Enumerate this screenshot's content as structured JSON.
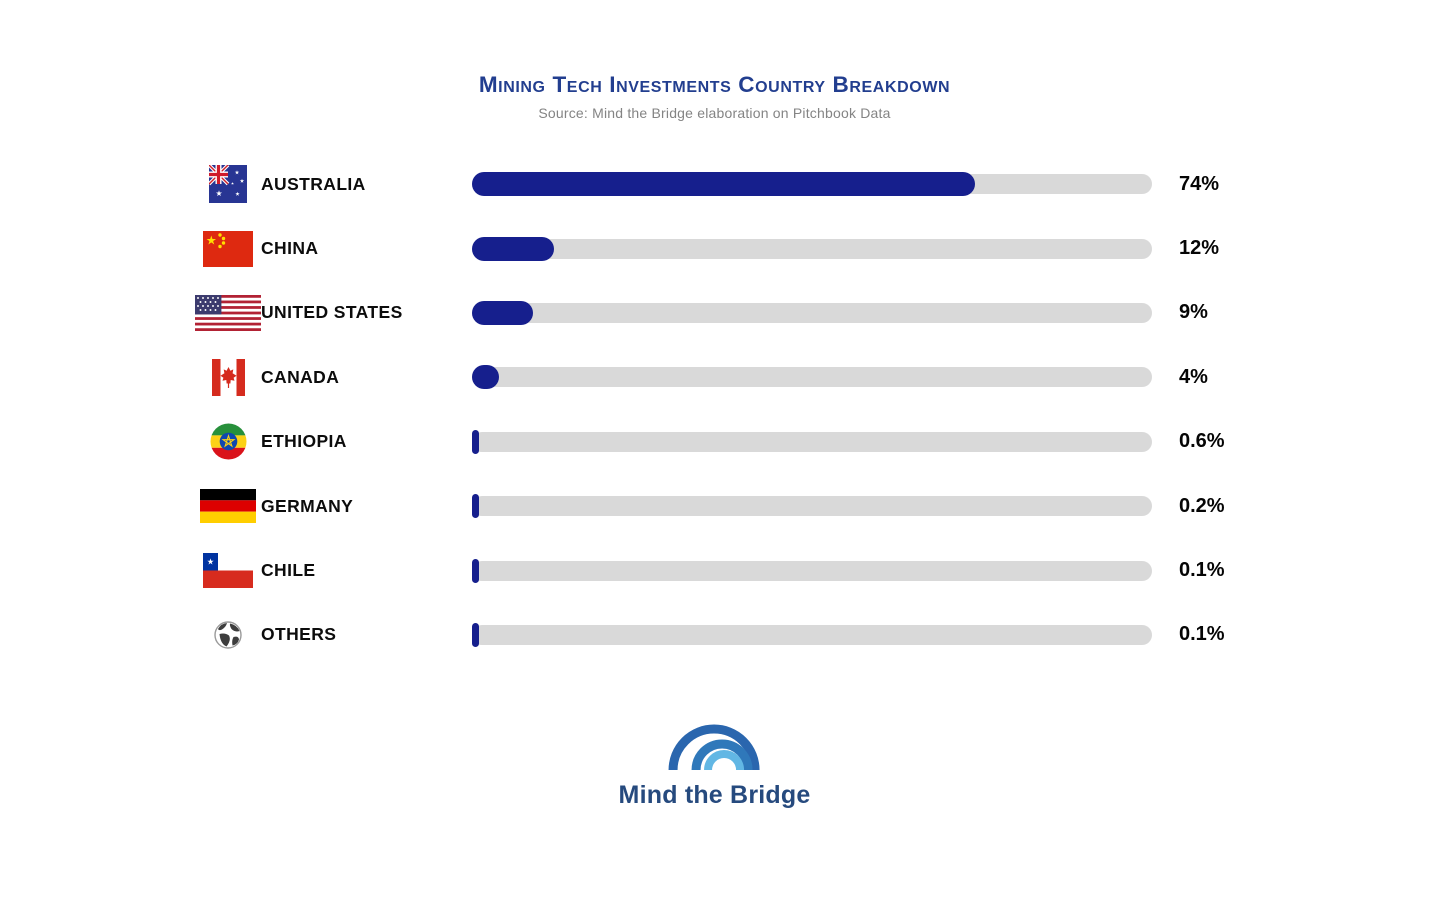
{
  "title": "Mining Tech Investments Country Breakdown",
  "subtitle": "Source: Mind the Bridge elaboration on Pitchbook Data",
  "logo": {
    "text": "Mind the Bridge"
  },
  "colors": {
    "title": "#223e8f",
    "subtitle": "#848484",
    "bar_fill": "#161f8d",
    "bar_track": "#d9d9d9",
    "logo_text": "#264a7e",
    "logo_arc_outer": "#2a66ae",
    "logo_arc_middle": "#2f78ba",
    "logo_arc_inner": "#62b7e4"
  },
  "chart_data": {
    "type": "bar",
    "orientation": "horizontal",
    "title": "Mining Tech Investments Country Breakdown",
    "subtitle": "Source: Mind the Bridge elaboration on Pitchbook Data",
    "xlim": [
      0,
      100
    ],
    "grid": false,
    "legend": "none",
    "categories": [
      "AUSTRALIA",
      "CHINA",
      "UNITED STATES",
      "CANADA",
      "ETHIOPIA",
      "GERMANY",
      "CHILE",
      "OTHERS"
    ],
    "values": [
      74,
      12,
      9,
      4,
      0.6,
      0.2,
      0.1,
      0.1
    ],
    "rows": [
      {
        "country": "AUSTRALIA",
        "value": 74,
        "label": "74%",
        "flag": "australia",
        "flag_icon": "australia-flag-icon"
      },
      {
        "country": "CHINA",
        "value": 12,
        "label": "12%",
        "flag": "china",
        "flag_icon": "china-flag-icon"
      },
      {
        "country": "UNITED STATES",
        "value": 9,
        "label": "9%",
        "flag": "usa",
        "flag_icon": "usa-flag-icon"
      },
      {
        "country": "CANADA",
        "value": 4,
        "label": "4%",
        "flag": "canada",
        "flag_icon": "canada-flag-icon"
      },
      {
        "country": "ETHIOPIA",
        "value": 0.6,
        "label": "0.6%",
        "flag": "ethiopia",
        "flag_icon": "ethiopia-flag-icon"
      },
      {
        "country": "GERMANY",
        "value": 0.2,
        "label": "0.2%",
        "flag": "germany",
        "flag_icon": "germany-flag-icon"
      },
      {
        "country": "CHILE",
        "value": 0.1,
        "label": "0.1%",
        "flag": "chile",
        "flag_icon": "chile-flag-icon"
      },
      {
        "country": "OTHERS",
        "value": 0.1,
        "label": "0.1%",
        "flag": "globe",
        "flag_icon": "globe-icon"
      }
    ]
  }
}
